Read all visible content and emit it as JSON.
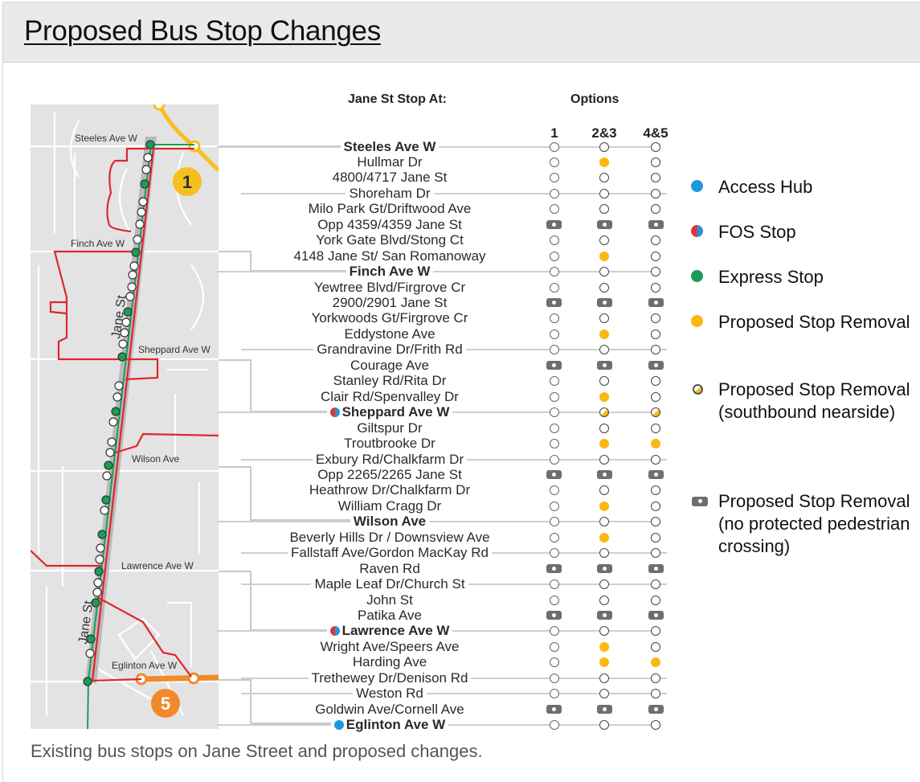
{
  "page": {
    "title": "Proposed Bus Stop Changes",
    "caption": "Existing bus stops on Jane Street and proposed changes."
  },
  "colors": {
    "access_hub": "#1c98dd",
    "fos_red": "#e53238",
    "fos_blue": "#2d91d5",
    "express": "#17a055",
    "removal": "#fbb813",
    "no_crossing": "#6e6e6e",
    "route_red": "#e0262c",
    "line1_yellow": "#f5c01e",
    "line5_orange": "#f08a2c",
    "map_bg": "#e3e3e4"
  },
  "map": {
    "street_labels": {
      "steeles": "Steeles Ave W",
      "finch": "Finch Ave W",
      "sheppard": "Sheppard Ave W",
      "wilson": "Wilson Ave",
      "lawrence": "Lawrence Ave W",
      "eglinton": "Eglinton Ave W",
      "jane_upper": "Jane St",
      "jane_lower": "Jane St"
    },
    "line_badges": {
      "line1": "1",
      "line5": "5"
    }
  },
  "table": {
    "stop_header": "Jane St Stop At:",
    "options_header": "Options",
    "option_columns": [
      "1",
      "2&3",
      "4&5"
    ],
    "rows": [
      {
        "name": "Steeles Ave W",
        "major": true,
        "badge": "",
        "rule": true,
        "o1": "open",
        "o2": "open",
        "o3": "open"
      },
      {
        "name": "Hullmar Dr",
        "major": false,
        "badge": "",
        "rule": false,
        "o1": "open",
        "o2": "removal",
        "o3": "open"
      },
      {
        "name": "4800/4717 Jane St",
        "major": false,
        "badge": "",
        "rule": false,
        "o1": "open",
        "o2": "open",
        "o3": "open"
      },
      {
        "name": "Shoreham Dr",
        "major": false,
        "badge": "",
        "rule": true,
        "o1": "open",
        "o2": "open",
        "o3": "open"
      },
      {
        "name": "Milo Park Gt/Driftwood Ave",
        "major": false,
        "badge": "",
        "rule": false,
        "o1": "open",
        "o2": "open",
        "o3": "open"
      },
      {
        "name": "Opp 4359/4359 Jane St",
        "major": false,
        "badge": "",
        "rule": false,
        "o1": "nocross",
        "o2": "nocross",
        "o3": "nocross"
      },
      {
        "name": "York Gate Blvd/Stong Ct",
        "major": false,
        "badge": "",
        "rule": false,
        "o1": "open",
        "o2": "open",
        "o3": "open"
      },
      {
        "name": "4148 Jane St/  San Romanoway",
        "major": false,
        "badge": "",
        "rule": false,
        "o1": "open",
        "o2": "removal",
        "o3": "open"
      },
      {
        "name": "Finch Ave W",
        "major": true,
        "badge": "",
        "rule": true,
        "o1": "open",
        "o2": "open",
        "o3": "open"
      },
      {
        "name": "Yewtree Blvd/Firgrove Cr",
        "major": false,
        "badge": "",
        "rule": false,
        "o1": "open",
        "o2": "open",
        "o3": "open"
      },
      {
        "name": "2900/2901 Jane St",
        "major": false,
        "badge": "",
        "rule": false,
        "o1": "nocross",
        "o2": "nocross",
        "o3": "nocross"
      },
      {
        "name": "Yorkwoods Gt/Firgrove Cr",
        "major": false,
        "badge": "",
        "rule": false,
        "o1": "open",
        "o2": "open",
        "o3": "open"
      },
      {
        "name": "Eddystone Ave",
        "major": false,
        "badge": "",
        "rule": false,
        "o1": "open",
        "o2": "removal",
        "o3": "open"
      },
      {
        "name": "Grandravine Dr/Frith Rd",
        "major": false,
        "badge": "",
        "rule": true,
        "o1": "open",
        "o2": "open",
        "o3": "open"
      },
      {
        "name": "Courage Ave",
        "major": false,
        "badge": "",
        "rule": false,
        "o1": "nocross",
        "o2": "nocross",
        "o3": "nocross"
      },
      {
        "name": "Stanley Rd/Rita Dr",
        "major": false,
        "badge": "",
        "rule": false,
        "o1": "open",
        "o2": "open",
        "o3": "open"
      },
      {
        "name": "Clair Rd/Spenvalley Dr",
        "major": false,
        "badge": "",
        "rule": false,
        "o1": "open",
        "o2": "removal",
        "o3": "open"
      },
      {
        "name": "Sheppard Ave W",
        "major": true,
        "badge": "fos",
        "rule": true,
        "o1": "open",
        "o2": "sb",
        "o3": "sb"
      },
      {
        "name": "Giltspur Dr",
        "major": false,
        "badge": "",
        "rule": false,
        "o1": "open",
        "o2": "open",
        "o3": "open"
      },
      {
        "name": "Troutbrooke Dr",
        "major": false,
        "badge": "",
        "rule": false,
        "o1": "open",
        "o2": "removal",
        "o3": "removal"
      },
      {
        "name": "Exbury Rd/Chalkfarm Dr",
        "major": false,
        "badge": "",
        "rule": true,
        "o1": "open",
        "o2": "open",
        "o3": "open"
      },
      {
        "name": "Opp 2265/2265 Jane St",
        "major": false,
        "badge": "",
        "rule": false,
        "o1": "nocross",
        "o2": "nocross",
        "o3": "nocross"
      },
      {
        "name": "Heathrow Dr/Chalkfarm Dr",
        "major": false,
        "badge": "",
        "rule": false,
        "o1": "open",
        "o2": "open",
        "o3": "open"
      },
      {
        "name": "William Cragg Dr",
        "major": false,
        "badge": "",
        "rule": false,
        "o1": "open",
        "o2": "removal",
        "o3": "open"
      },
      {
        "name": "Wilson Ave",
        "major": true,
        "badge": "",
        "rule": true,
        "o1": "open",
        "o2": "open",
        "o3": "open"
      },
      {
        "name": "Beverly Hills Dr / Downsview Ave",
        "major": false,
        "badge": "",
        "rule": false,
        "o1": "open",
        "o2": "removal",
        "o3": "open"
      },
      {
        "name": "Fallstaff Ave/Gordon MacKay Rd",
        "major": false,
        "badge": "",
        "rule": true,
        "o1": "open",
        "o2": "open",
        "o3": "open"
      },
      {
        "name": "Raven Rd",
        "major": false,
        "badge": "",
        "rule": false,
        "o1": "nocross",
        "o2": "nocross",
        "o3": "nocross"
      },
      {
        "name": "Maple Leaf Dr/Church St",
        "major": false,
        "badge": "",
        "rule": true,
        "o1": "open",
        "o2": "open",
        "o3": "open"
      },
      {
        "name": "John St",
        "major": false,
        "badge": "",
        "rule": false,
        "o1": "open",
        "o2": "open",
        "o3": "open"
      },
      {
        "name": "Patika Ave",
        "major": false,
        "badge": "",
        "rule": false,
        "o1": "nocross",
        "o2": "nocross",
        "o3": "nocross"
      },
      {
        "name": "Lawrence Ave W",
        "major": true,
        "badge": "fos",
        "rule": true,
        "o1": "open",
        "o2": "open",
        "o3": "open"
      },
      {
        "name": "Wright Ave/Speers Ave",
        "major": false,
        "badge": "",
        "rule": false,
        "o1": "open",
        "o2": "removal",
        "o3": "open"
      },
      {
        "name": "Harding Ave",
        "major": false,
        "badge": "",
        "rule": false,
        "o1": "open",
        "o2": "removal",
        "o3": "removal"
      },
      {
        "name": "Trethewey Dr/Denison Rd",
        "major": false,
        "badge": "",
        "rule": true,
        "o1": "open",
        "o2": "open",
        "o3": "open"
      },
      {
        "name": "Weston Rd",
        "major": false,
        "badge": "",
        "rule": true,
        "o1": "open",
        "o2": "open",
        "o3": "open"
      },
      {
        "name": "Goldwin Ave/Cornell Ave",
        "major": false,
        "badge": "",
        "rule": false,
        "o1": "nocross",
        "o2": "nocross",
        "o3": "nocross"
      },
      {
        "name": "Eglinton Ave W",
        "major": true,
        "badge": "hub",
        "rule": true,
        "o1": "open",
        "o2": "open",
        "o3": "open"
      }
    ]
  },
  "legend": {
    "items": [
      {
        "key": "access-hub",
        "label": "Access Hub",
        "icon": "blue-dot-icon"
      },
      {
        "key": "fos-stop",
        "label": "FOS Stop",
        "icon": "red-blue-split-dot-icon"
      },
      {
        "key": "express-stop",
        "label": "Express Stop",
        "icon": "green-dot-icon"
      },
      {
        "key": "proposed-removal",
        "label": "Proposed Stop Removal",
        "icon": "yellow-dot-icon"
      },
      {
        "key": "proposed-removal-sb",
        "label": "Proposed Stop Removal (southbound nearside)",
        "icon": "half-yellow-circle-icon"
      },
      {
        "key": "proposed-removal-nocross",
        "label": "Proposed Stop Removal (no protected pedestrian crossing)",
        "icon": "grey-rounded-rect-icon"
      }
    ]
  }
}
